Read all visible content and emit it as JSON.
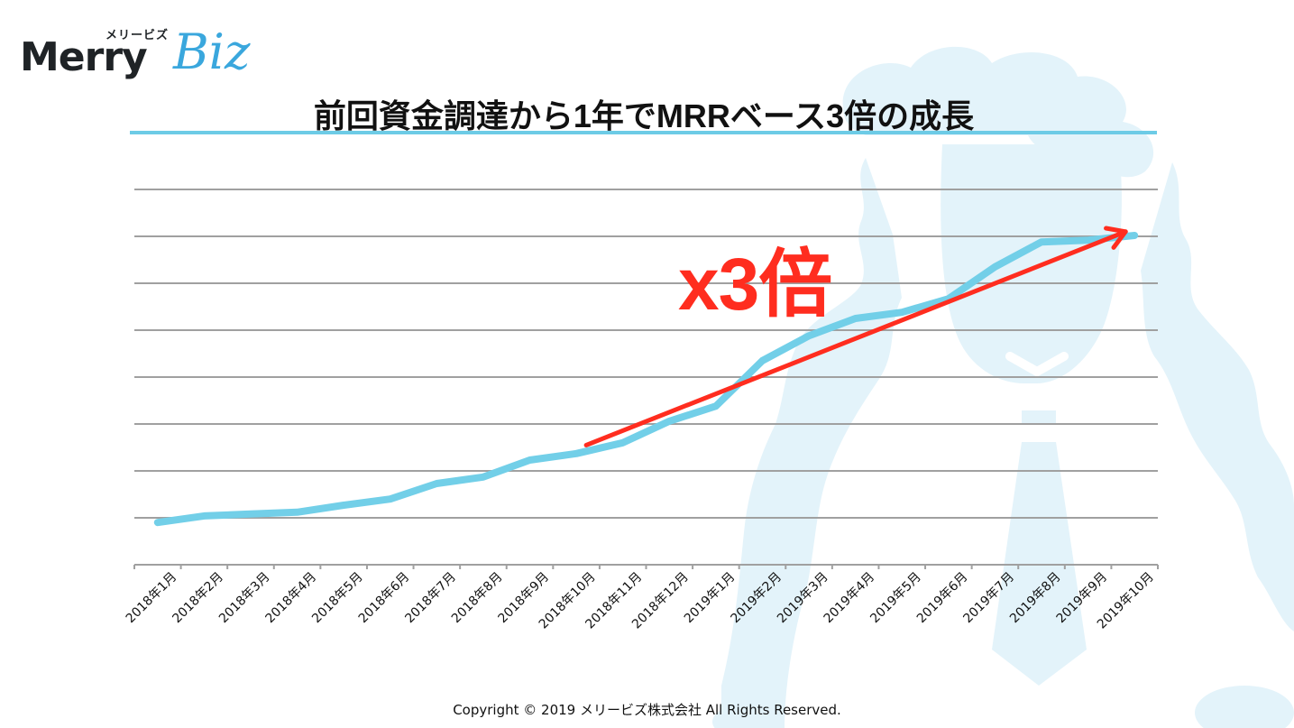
{
  "logo": {
    "kana": "メリービズ",
    "wordmark_left": "Merry",
    "wordmark_right": "Biz"
  },
  "slide": {
    "title": "前回資金調達から1年でMRRベース3倍の成長",
    "annotation": "x3倍",
    "footer": "Copyright © 2019 メリービズ株式会社  All Rights Reserved."
  },
  "colors": {
    "line": "#72cfe8",
    "arrow": "#ff2d1f",
    "title_rule": "#6dcbe6",
    "gridline": "#a0a0a0",
    "watermark": "#e3f3fa"
  },
  "chart_data": {
    "type": "line",
    "title": "前回資金調達から1年でMRRベース3倍の成長",
    "xlabel": "",
    "ylabel": "",
    "y_tick_labels_shown": false,
    "grid": true,
    "gridline_count": 8,
    "ylim": [
      0,
      8
    ],
    "legend": null,
    "categories": [
      "2018年1月",
      "2018年2月",
      "2018年3月",
      "2018年4月",
      "2018年5月",
      "2018年6月",
      "2018年7月",
      "2018年8月",
      "2018年9月",
      "2018年10月",
      "2018年11月",
      "2018年12月",
      "2019年1月",
      "2019年2月",
      "2019年3月",
      "2019年4月",
      "2019年5月",
      "2019年6月",
      "2019年7月",
      "2019年8月",
      "2019年9月",
      "2019年10月"
    ],
    "series": [
      {
        "name": "MRR",
        "values": [
          0.9,
          1.04,
          1.08,
          1.12,
          1.27,
          1.4,
          1.73,
          1.87,
          2.23,
          2.37,
          2.6,
          3.06,
          3.38,
          4.35,
          4.88,
          5.25,
          5.38,
          5.67,
          6.35,
          6.88,
          6.92,
          7.02
        ]
      }
    ],
    "annotations": [
      {
        "type": "arrow",
        "from_category": "2018年10月",
        "to_category": "2019年10月",
        "from_value": 2.55,
        "to_value": 7.1,
        "color": "#ff2d1f"
      },
      {
        "type": "text",
        "text": "x3倍",
        "color": "#ff2d1f"
      }
    ]
  }
}
